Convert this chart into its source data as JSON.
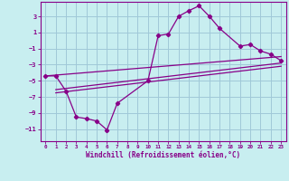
{
  "xlabel": "Windchill (Refroidissement éolien,°C)",
  "background_color": "#c8eef0",
  "grid_color": "#a0c8d8",
  "line_color": "#880088",
  "xlim": [
    -0.5,
    23.5
  ],
  "ylim": [
    -12.5,
    4.8
  ],
  "yticks": [
    3,
    1,
    -1,
    -3,
    -5,
    -7,
    -9,
    -11
  ],
  "xticks": [
    0,
    1,
    2,
    3,
    4,
    5,
    6,
    7,
    8,
    9,
    10,
    11,
    12,
    13,
    14,
    15,
    16,
    17,
    18,
    19,
    20,
    21,
    22,
    23
  ],
  "line1_x": [
    0,
    1,
    2,
    3,
    4,
    5,
    6,
    7,
    10,
    11,
    12,
    13,
    14,
    15,
    16,
    17,
    19,
    20,
    21,
    22,
    23
  ],
  "line1_y": [
    -4.4,
    -4.4,
    -6.3,
    -9.5,
    -9.7,
    -10.0,
    -11.1,
    -7.8,
    -5.0,
    0.6,
    0.8,
    3.0,
    3.7,
    4.3,
    3.0,
    1.5,
    -0.7,
    -0.5,
    -1.3,
    -1.7,
    -2.5
  ],
  "line2_x": [
    0,
    23
  ],
  "line2_y": [
    -4.4,
    -2.0
  ],
  "line3_x": [
    1,
    23
  ],
  "line3_y": [
    -6.1,
    -2.8
  ],
  "line4_x": [
    1,
    23
  ],
  "line4_y": [
    -6.5,
    -3.2
  ]
}
